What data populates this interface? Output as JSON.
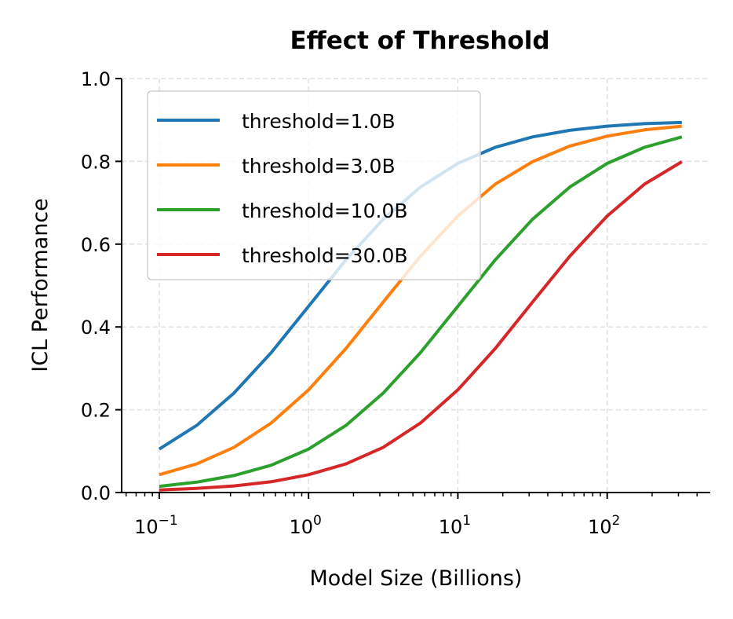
{
  "chart_data": {
    "type": "line",
    "title": "Effect of Threshold",
    "xlabel": "Model Size (Billions)",
    "ylabel": "ICL Performance",
    "xscale": "log",
    "xlim": [
      0.056,
      490
    ],
    "ylim": [
      0.0,
      1.0
    ],
    "grid": true,
    "legend_position": "top-left",
    "x_ticks": [
      {
        "value": 0.1,
        "base": "10",
        "exp": "−1"
      },
      {
        "value": 1,
        "base": "10",
        "exp": "0"
      },
      {
        "value": 10,
        "base": "10",
        "exp": "1"
      },
      {
        "value": 100,
        "base": "10",
        "exp": "2"
      }
    ],
    "y_ticks": [
      "0.0",
      "0.2",
      "0.4",
      "0.6",
      "0.8",
      "1.0"
    ],
    "x": [
      0.1,
      0.178,
      0.316,
      0.562,
      1,
      1.78,
      3.16,
      5.62,
      10,
      17.8,
      31.6,
      56.2,
      100,
      178,
      316
    ],
    "series": [
      {
        "name": "threshold=1.0B",
        "color": "#1f77b4",
        "values": [
          0.105,
          0.162,
          0.24,
          0.338,
          0.45,
          0.562,
          0.66,
          0.738,
          0.795,
          0.834,
          0.859,
          0.875,
          0.885,
          0.891,
          0.894
        ]
      },
      {
        "name": "threshold=3.0B",
        "color": "#ff7f0e",
        "values": [
          0.043,
          0.069,
          0.109,
          0.168,
          0.248,
          0.348,
          0.46,
          0.571,
          0.668,
          0.745,
          0.799,
          0.837,
          0.861,
          0.876,
          0.885
        ]
      },
      {
        "name": "threshold=10.0B",
        "color": "#2ca02c",
        "values": [
          0.015,
          0.025,
          0.041,
          0.066,
          0.105,
          0.162,
          0.24,
          0.338,
          0.45,
          0.562,
          0.66,
          0.738,
          0.795,
          0.834,
          0.859
        ]
      },
      {
        "name": "threshold=30.0B",
        "color": "#d62728",
        "values": [
          0.006,
          0.01,
          0.016,
          0.026,
          0.043,
          0.069,
          0.109,
          0.168,
          0.248,
          0.348,
          0.46,
          0.571,
          0.668,
          0.745,
          0.799
        ]
      }
    ]
  }
}
